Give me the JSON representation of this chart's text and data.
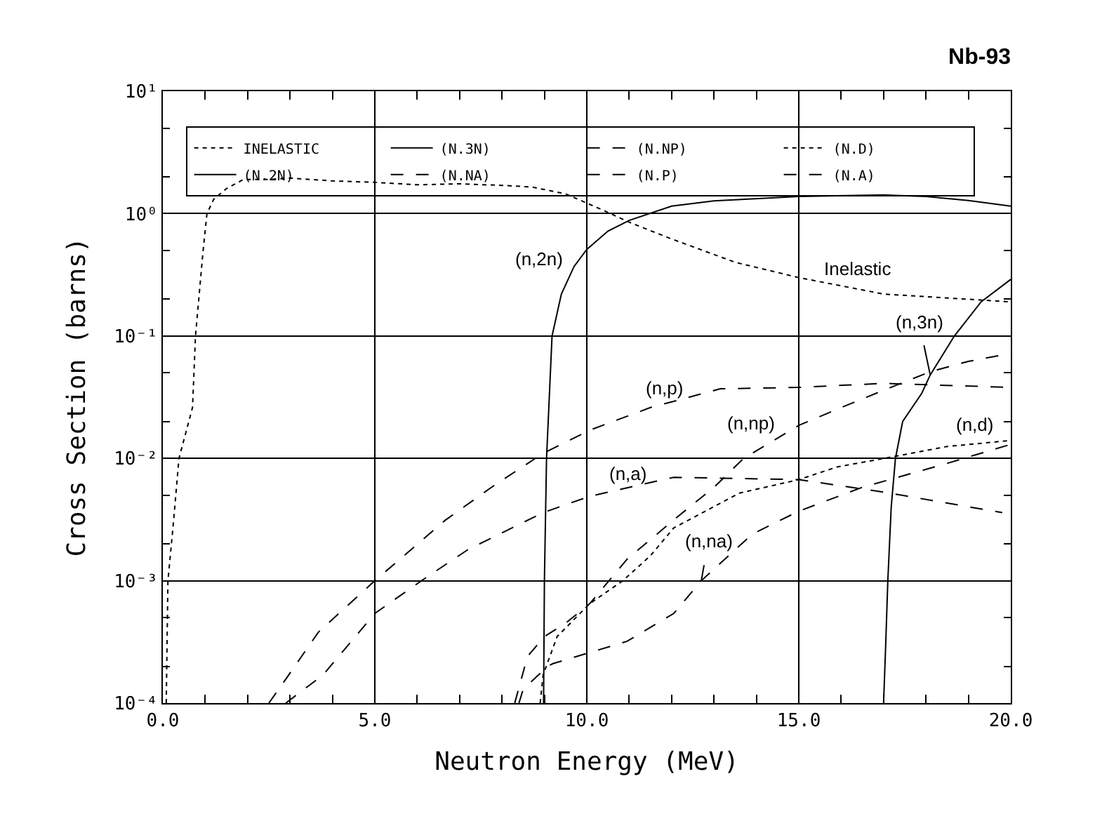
{
  "chart_data": {
    "type": "line",
    "title": "Nb-93",
    "xlabel": "Neutron Energy (MeV)",
    "ylabel": "Cross Section (barns)",
    "log": "y",
    "grid": true,
    "legend": "top",
    "marker": "none",
    "xlim": [
      0,
      20
    ],
    "xticks": [
      {
        "value": 0,
        "label": "0.0"
      },
      {
        "value": 5,
        "label": "5.0"
      },
      {
        "value": 10,
        "label": "10.0"
      },
      {
        "value": 15,
        "label": "15.0"
      },
      {
        "value": 20,
        "label": "20.0"
      }
    ],
    "ylim": [
      0.0001,
      10
    ],
    "yticks": [
      {
        "value": 0.0001,
        "label": "10⁻⁴"
      },
      {
        "value": 0.001,
        "label": "10⁻³"
      },
      {
        "value": 0.01,
        "label": "10⁻²"
      },
      {
        "value": 0.1,
        "label": "10⁻¹"
      },
      {
        "value": 1,
        "label": "10⁰"
      },
      {
        "value": 10,
        "label": "10¹"
      }
    ],
    "series": [
      {
        "name": "INELASTIC",
        "color": "#000000",
        "line_style": "dotted",
        "x": [
          0.08,
          0.12,
          0.25,
          0.38,
          0.7,
          0.77,
          0.95,
          1.04,
          1.2,
          1.5,
          1.9,
          2.5,
          3,
          4,
          5,
          6,
          7,
          8,
          8.7,
          9.5,
          10.4,
          11,
          11.95,
          13.5,
          15,
          17,
          20
        ],
        "values": [
          0.0001,
          0.001,
          0.003,
          0.01,
          0.026,
          0.1,
          0.5,
          1.0,
          1.31,
          1.6,
          1.9,
          1.9,
          1.95,
          1.85,
          1.8,
          1.72,
          1.75,
          1.7,
          1.65,
          1.45,
          1.06,
          0.85,
          0.63,
          0.4,
          0.3,
          0.22,
          0.19
        ]
      },
      {
        "name": "(N.3N)",
        "color": "#000000",
        "line_style": "solid",
        "x": [
          17.0,
          17.05,
          17.1,
          17.18,
          17.28,
          17.45,
          17.9,
          18.1,
          18.67,
          19.3,
          20
        ],
        "values": [
          0.0001,
          0.0003,
          0.001,
          0.004,
          0.01,
          0.02,
          0.034,
          0.048,
          0.1,
          0.19,
          0.29
        ]
      },
      {
        "name": "(N.NP)",
        "color": "#000000",
        "line_style": "dashed",
        "x": [
          8.3,
          8.6,
          9.0,
          9.5,
          10.07,
          10.95,
          12.15,
          13.0,
          13.7,
          15,
          16,
          17,
          18.1,
          19,
          20
        ],
        "values": [
          0.0001,
          0.00024,
          0.00035,
          0.00045,
          0.00065,
          0.0015,
          0.00335,
          0.0058,
          0.01,
          0.0186,
          0.026,
          0.036,
          0.051,
          0.062,
          0.072
        ]
      },
      {
        "name": "(N.D)",
        "color": "#000000",
        "line_style": "dotted",
        "x": [
          8.9,
          8.97,
          9.3,
          10.07,
          10.85,
          11.5,
          12.05,
          13.6,
          15,
          15.9,
          17.35,
          18.5,
          20
        ],
        "values": [
          0.0001,
          0.00017,
          0.00035,
          0.00065,
          0.001,
          0.0016,
          0.0027,
          0.0052,
          0.0067,
          0.0085,
          0.0105,
          0.0125,
          0.014
        ]
      },
      {
        "name": "(N.2N)",
        "color": "#000000",
        "line_style": "solid",
        "x": [
          8.98,
          9.0,
          9.05,
          9.18,
          9.4,
          9.7,
          10,
          10.5,
          11,
          12,
          13,
          15,
          17,
          18,
          19,
          20
        ],
        "values": [
          0.0001,
          0.001,
          0.01,
          0.1,
          0.22,
          0.37,
          0.51,
          0.72,
          0.88,
          1.15,
          1.27,
          1.38,
          1.42,
          1.38,
          1.28,
          1.15
        ]
      },
      {
        "name": "(N.NA)",
        "color": "#000000",
        "line_style": "dashed",
        "x": [
          8.4,
          8.5,
          9.08,
          9.2,
          10.95,
          12.05,
          12.7,
          13.9,
          15,
          16.5,
          18.45,
          20
        ],
        "values": [
          0.0001,
          0.00013,
          0.0002,
          0.00021,
          0.00032,
          0.00054,
          0.001,
          0.0024,
          0.0037,
          0.0058,
          0.009,
          0.013
        ]
      },
      {
        "name": "(N.P)",
        "color": "#000000",
        "line_style": "dashed",
        "x": [
          2.5,
          2.8,
          3.67,
          5.0,
          6.65,
          7.75,
          8.97,
          10.07,
          11.5,
          13.15,
          15,
          17,
          20
        ],
        "values": [
          0.0001,
          0.00014,
          0.00038,
          0.001,
          0.0031,
          0.0058,
          0.011,
          0.017,
          0.026,
          0.037,
          0.038,
          0.041,
          0.038
        ]
      },
      {
        "name": "(N.A)",
        "color": "#000000",
        "line_style": "dashed",
        "x": [
          2.9,
          3.78,
          5.0,
          6.1,
          7.2,
          8.97,
          10.07,
          12.05,
          15,
          17,
          19.8
        ],
        "values": [
          0.0001,
          0.00017,
          0.00054,
          0.001,
          0.0018,
          0.0036,
          0.0049,
          0.007,
          0.0067,
          0.0053,
          0.0036
        ]
      }
    ],
    "annotations": [
      {
        "text": "(n,2n)",
        "x": 9.4,
        "y": 0.22
      },
      {
        "text": "Inelastic",
        "x": 15,
        "y": 0.3
      },
      {
        "text": "(n,3n)",
        "x": 18.1,
        "y": 0.048
      },
      {
        "text": "(n,p)",
        "x": 11.5,
        "y": 0.026
      },
      {
        "text": "(n,np)",
        "x": 13.7,
        "y": 0.01
      },
      {
        "text": "(n,a)",
        "x": 10.07,
        "y": 0.0049
      },
      {
        "text": "(n,na)",
        "x": 12.7,
        "y": 0.001
      },
      {
        "text": "(n,d)",
        "x": 18.5,
        "y": 0.0125
      }
    ]
  }
}
